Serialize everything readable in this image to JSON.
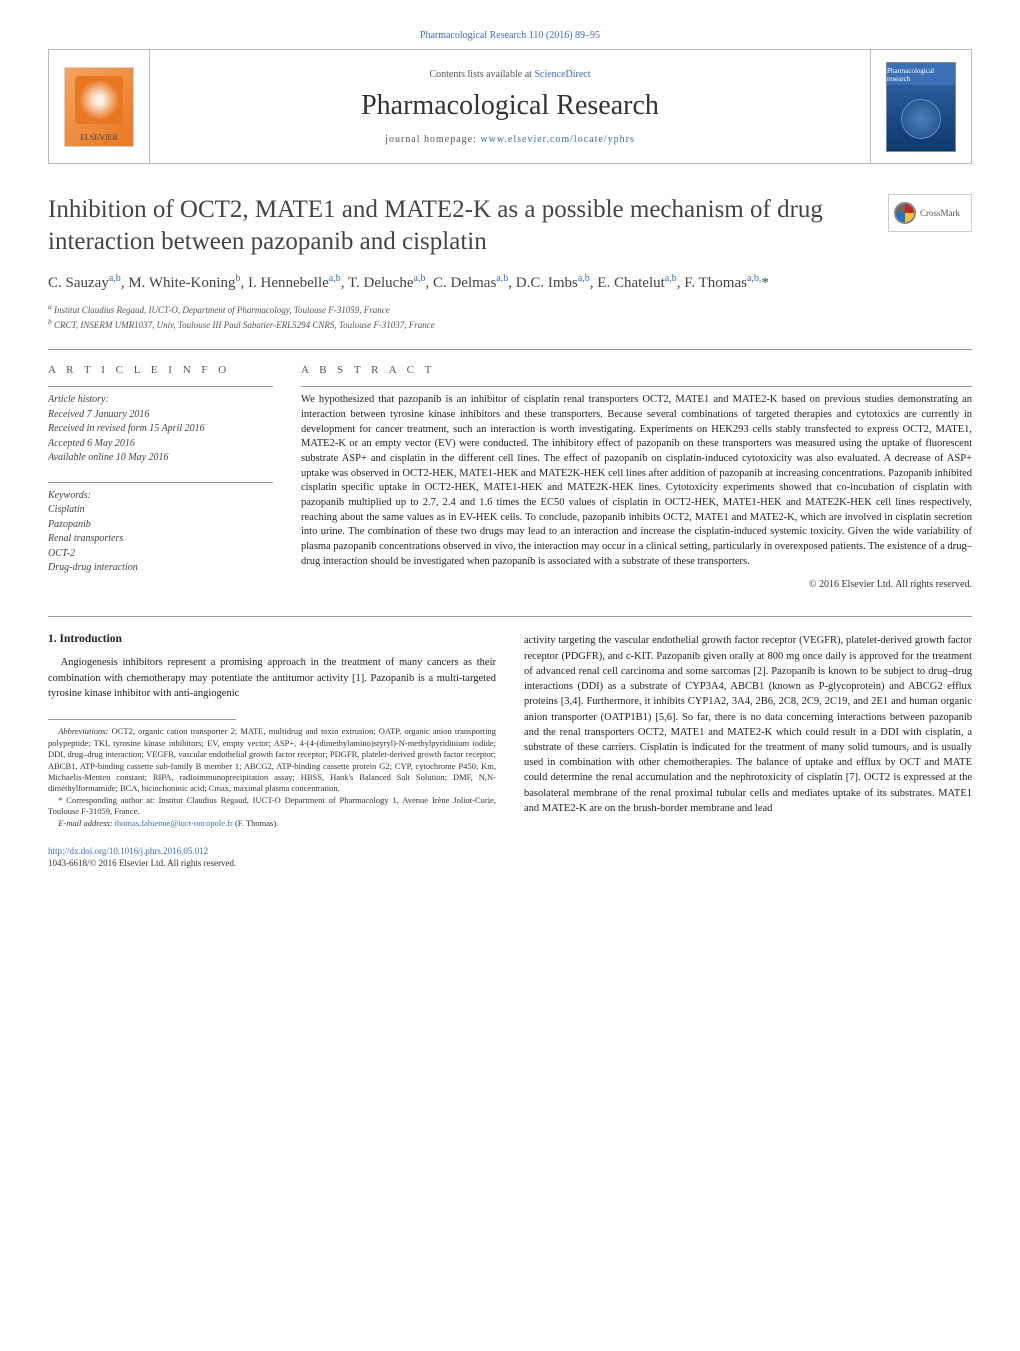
{
  "header": {
    "citation": "Pharmacological Research 110 (2016) 89–95",
    "contents_prefix": "Contents lists available at ",
    "contents_link": "ScienceDirect",
    "journal": "Pharmacological Research",
    "homepage_prefix": "journal homepage: ",
    "homepage_link": "www.elsevier.com/locate/yphrs",
    "elsevier_label": "ELSEVIER",
    "cover_label": "Pharmacological research"
  },
  "crossmark_label": "CrossMark",
  "title": "Inhibition of OCT2, MATE1 and MATE2-K as a possible mechanism of drug interaction between pazopanib and cisplatin",
  "authors_html": "C. Sauzay<sup>a,b</sup>, M. White-Koning<sup>b</sup>, I. Hennebelle<sup>a,b</sup>, T. Deluche<sup>a,b</sup>, C. Delmas<sup>a,b</sup>, D.C. Imbs<sup>a,b</sup>, E. Chatelut<sup>a,b</sup>, F. Thomas<sup>a,b,</sup>*",
  "affiliations": {
    "a": "Institut Claudius Regaud, IUCT-O, Department of Pharmacology, Toulouse F-31059, France",
    "b": "CRCT, INSERM UMR1037, Univ, Toulouse III Paul Sabatier-ERL5294 CNRS, Toulouse F-31037, France"
  },
  "article_info": {
    "heading": "a r t i c l e   i n f o",
    "history_label": "Article history:",
    "received": "Received 7 January 2016",
    "revised": "Received in revised form 15 April 2016",
    "accepted": "Accepted 6 May 2016",
    "online": "Available online 10 May 2016",
    "keywords_label": "Keywords:",
    "keywords": [
      "Cisplatin",
      "Pazopanib",
      "Renal transporters",
      "OCT-2",
      "Drug-drug interaction"
    ]
  },
  "abstract": {
    "heading": "a b s t r a c t",
    "text": "We hypothesized that pazopanib is an inhibitor of cisplatin renal transporters OCT2, MATE1 and MATE2-K based on previous studies demonstrating an interaction between tyrosine kinase inhibitors and these transporters. Because several combinations of targeted therapies and cytotoxics are currently in development for cancer treatment, such an interaction is worth investigating. Experiments on HEK293 cells stably transfected to express OCT2, MATE1, MATE2-K or an empty vector (EV) were conducted. The inhibitory effect of pazopanib on these transporters was measured using the uptake of fluorescent substrate ASP+ and cisplatin in the different cell lines. The effect of pazopanib on cisplatin-induced cytotoxicity was also evaluated. A decrease of ASP+ uptake was observed in OCT2-HEK, MATE1-HEK and MATE2K-HEK cell lines after addition of pazopanib at increasing concentrations. Pazopanib inhibited cisplatin specific uptake in OCT2-HEK, MATE1-HEK and MATE2K-HEK lines. Cytotoxicity experiments showed that co-incubation of cisplatin with pazopanib multiplied up to 2.7, 2.4 and 1.6 times the EC50 values of cisplatin in OCT2-HEK, MATE1-HEK and MATE2K-HEK cell lines respectively, reaching about the same values as in EV-HEK cells. To conclude, pazopanib inhibits OCT2, MATE1 and MATE2-K, which are involved in cisplatin secretion into urine. The combination of these two drugs may lead to an interaction and increase the cisplatin-induced systemic toxicity. Given the wide variability of plasma pazopanib concentrations observed in vivo, the interaction may occur in a clinical setting, particularly in overexposed patients. The existence of a drug–drug interaction should be investigated when pazopanib is associated with a substrate of these transporters.",
    "copyright": "© 2016 Elsevier Ltd. All rights reserved."
  },
  "body": {
    "intro_heading": "1. Introduction",
    "left_intro": "Angiogenesis inhibitors represent a promising approach in the treatment of many cancers as their combination with chemotherapy may potentiate the antitumor activity [1]. Pazopanib is a multi-targeted tyrosine kinase inhibitor with anti-angiogenic",
    "right_text": "activity targeting the vascular endothelial growth factor receptor (VEGFR), platelet-derived growth factor receptor (PDGFR), and c-KIT. Pazopanib given orally at 800 mg once daily is approved for the treatment of advanced renal cell carcinoma and some sarcomas [2]. Pazopanib is known to be subject to drug–drug interactions (DDI) as a substrate of CYP3A4, ABCB1 (known as P-glycoprotein) and ABCG2 efflux proteins [3,4]. Furthermore, it inhibits CYP1A2, 3A4, 2B6, 2C8, 2C9, 2C19, and 2E1 and human organic anion transporter (OATP1B1) [5,6]. So far, there is no data concerning interactions between pazopanib and the renal transporters OCT2, MATE1 and MATE2-K which could result in a DDI with cisplatin, a substrate of these carriers. Cisplatin is indicated for the treatment of many solid tumours, and is usually used in combination with other chemotherapies. The balance of uptake and efflux by OCT and MATE could determine the renal accumulation and the nephrotoxicity of cisplatin [7]. OCT2 is expressed at the basolateral membrane of the renal proximal tubular cells and mediates uptake of its substrates. MATE1 and MATE2-K are on the brush-border membrane and lead"
  },
  "footnotes": {
    "abbrev_label": "Abbreviations:",
    "abbrev_text": "OCT2, organic cation transporter 2; MATE, multidrug and toxin extrusion; OATP, organic anion transporting polypeptide; TKI, tyrosine kinase inhibitors; EV, empty vector; ASP+, 4-(4-(dimethylamino)styryl)-N-methylpyridinium iodide; DDI, drug–drug interaction; VEGFR, vascular endothelial growth factor receptor; PDGFR, platelet-derived growth factor receptor; ABCB1, ATP-binding cassette sub-family B member 1; ABCG2, ATP-binding cassette protein G2; CYP, cytochrome P450; Km, Michaelis-Menten constant; RIPA, radioimmunoprecipitation assay; HBSS, Hank's Balanced Salt Solution; DMF, N,N-diméthylformamide; BCA, bicinchoninic acid; Cmax, maximal plasma concentration.",
    "corr_label": "* Corresponding author at: ",
    "corr_text": "Institut Claudius Regaud, IUCT-O Department of Pharmacology 1, Avenue Irène Joliot-Curie, Toulouse F-31059, France.",
    "email_label": "E-mail address: ",
    "email": "thomas.fabienne@iuct-oncopole.fr",
    "email_suffix": " (F. Thomas)."
  },
  "footer": {
    "doi": "http://dx.doi.org/10.1016/j.phrs.2016.05.012",
    "issn_line": "1043-6618/© 2016 Elsevier Ltd. All rights reserved."
  },
  "colors": {
    "link": "#3b6fb6",
    "text": "#222222",
    "muted": "#555555",
    "rule": "#999999"
  }
}
